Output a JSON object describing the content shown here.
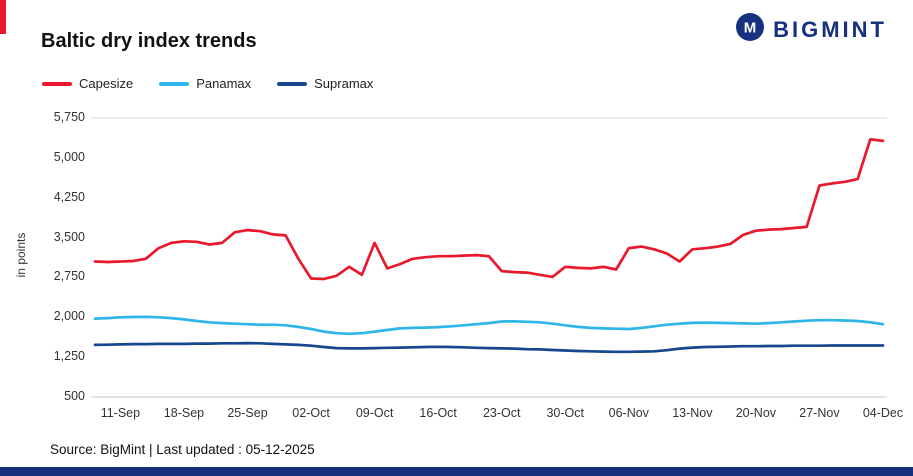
{
  "header": {
    "title": "Baltic dry index trends",
    "logo_text": "BIGMINT",
    "logo_icon": "bigmint-m-circle-icon"
  },
  "footer": {
    "source_line": "Source: BigMint | Last updated : 05-12-2025"
  },
  "colors": {
    "capesize_red": "#e8192c",
    "panamax_cyan": "#2fb6e9",
    "supramax_navy": "#17478e",
    "brand_navy": "#16317d",
    "gridline_gray": "#d9d9d9"
  },
  "chart_data": {
    "type": "line",
    "title": "Baltic dry index trends",
    "xlabel": "",
    "ylabel": "in points",
    "ylim": [
      500,
      5750
    ],
    "y_ticks": [
      500,
      1250,
      2000,
      2750,
      3500,
      4250,
      5000,
      5750
    ],
    "grid": "top gridline and bottom axis only",
    "legend_position": "top-left",
    "x_tick_labels": [
      "11-Sep",
      "18-Sep",
      "25-Sep",
      "02-Oct",
      "09-Oct",
      "16-Oct",
      "23-Oct",
      "30-Oct",
      "06-Nov",
      "13-Nov",
      "20-Nov",
      "27-Nov",
      "04-Dec"
    ],
    "x_tick_indices": [
      2,
      7,
      12,
      17,
      22,
      27,
      32,
      37,
      42,
      47,
      52,
      57,
      62
    ],
    "series": [
      {
        "name": "Capesize",
        "color": "#e8192c",
        "values": [
          3050,
          3040,
          3050,
          3060,
          3100,
          3300,
          3400,
          3430,
          3420,
          3370,
          3400,
          3600,
          3640,
          3620,
          3560,
          3540,
          3100,
          2730,
          2720,
          2780,
          2950,
          2800,
          3400,
          2920,
          3000,
          3100,
          3130,
          3150,
          3150,
          3160,
          3170,
          3150,
          2870,
          2850,
          2840,
          2800,
          2760,
          2950,
          2930,
          2920,
          2950,
          2900,
          3300,
          3330,
          3280,
          3200,
          3050,
          3280,
          3300,
          3330,
          3380,
          3550,
          3630,
          3650,
          3660,
          3680,
          3700,
          4480,
          4520,
          4550,
          4600,
          5350,
          5320
        ]
      },
      {
        "name": "Panamax",
        "color": "#2fb6e9",
        "values": [
          1975,
          1985,
          2000,
          2005,
          2010,
          2000,
          1985,
          1960,
          1930,
          1905,
          1890,
          1880,
          1870,
          1860,
          1860,
          1850,
          1820,
          1780,
          1730,
          1700,
          1690,
          1700,
          1730,
          1760,
          1790,
          1800,
          1805,
          1815,
          1830,
          1850,
          1870,
          1890,
          1920,
          1925,
          1915,
          1905,
          1880,
          1850,
          1820,
          1800,
          1790,
          1785,
          1780,
          1800,
          1830,
          1860,
          1880,
          1895,
          1900,
          1895,
          1890,
          1885,
          1880,
          1890,
          1905,
          1920,
          1935,
          1945,
          1945,
          1940,
          1930,
          1905,
          1870
        ]
      },
      {
        "name": "Supramax",
        "color": "#17478e",
        "values": [
          1480,
          1485,
          1490,
          1495,
          1495,
          1500,
          1500,
          1500,
          1505,
          1505,
          1510,
          1510,
          1515,
          1510,
          1500,
          1490,
          1480,
          1465,
          1440,
          1420,
          1415,
          1415,
          1420,
          1425,
          1430,
          1435,
          1440,
          1445,
          1440,
          1435,
          1425,
          1420,
          1415,
          1410,
          1400,
          1395,
          1385,
          1375,
          1365,
          1360,
          1355,
          1350,
          1350,
          1355,
          1360,
          1380,
          1410,
          1430,
          1440,
          1445,
          1450,
          1455,
          1455,
          1460,
          1460,
          1465,
          1465,
          1465,
          1470,
          1470,
          1470,
          1470,
          1470
        ]
      }
    ]
  }
}
